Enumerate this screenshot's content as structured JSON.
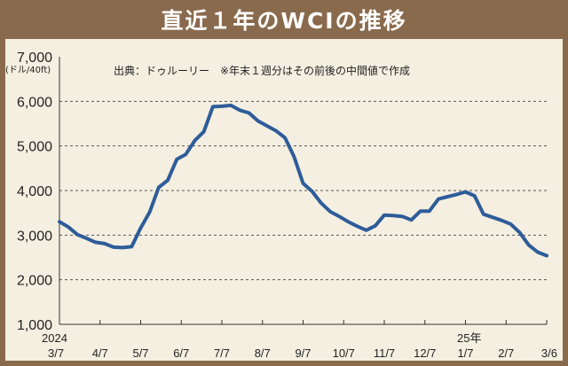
{
  "title": "直近１年のWCIの推移",
  "chart_data": {
    "type": "line",
    "unit_label": "(ドル/40ft)",
    "source_note": "出典：ドゥルーリー　※年末１週分はその前後の中間値で作成",
    "ylim": [
      1000,
      7000
    ],
    "y_ticks": [
      "7,000",
      "6,000",
      "5,000",
      "4,000",
      "3,000",
      "2,000",
      "1,000"
    ],
    "x_ticks": [
      "3/7",
      "4/7",
      "5/7",
      "6/7",
      "7/7",
      "8/7",
      "9/7",
      "10/7",
      "11/7",
      "12/7",
      "1/7",
      "2/7",
      "3/6"
    ],
    "year_labels": [
      "2024",
      "25年"
    ],
    "grid": true,
    "series_color": "#2e5c99",
    "series": [
      {
        "values": [
          3300,
          3180,
          3010,
          2930,
          2840,
          2810,
          2730,
          2720,
          2740,
          3160,
          3520,
          4070,
          4230,
          4700,
          4810,
          5120,
          5320,
          5880,
          5890,
          5910,
          5800,
          5740,
          5560,
          5450,
          5340,
          5180,
          4760,
          4160,
          3980,
          3720,
          3530,
          3420,
          3300,
          3200,
          3110,
          3210,
          3450,
          3440,
          3420,
          3340,
          3540,
          3540,
          3810,
          3860,
          3910,
          3970,
          3880,
          3470,
          3400,
          3330,
          3250,
          3060,
          2780,
          2620,
          2540
        ]
      }
    ]
  }
}
